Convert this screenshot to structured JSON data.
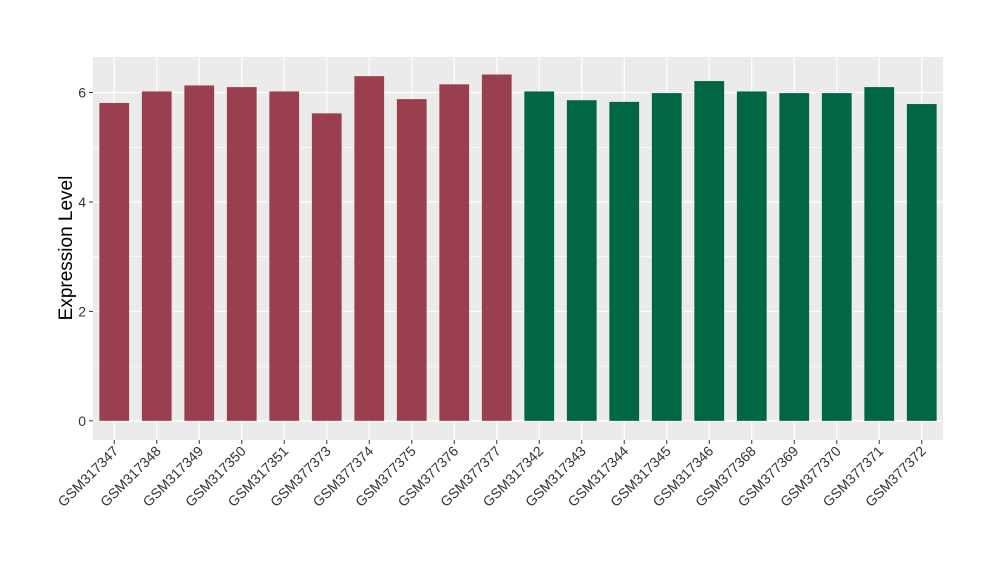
{
  "chart_data": {
    "type": "bar",
    "title": "",
    "xlabel": "",
    "ylabel": "Expression Level",
    "ylim": [
      -0.35,
      6.65
    ],
    "yticks": [
      0,
      2,
      4,
      6
    ],
    "ytick_labels": [
      "0",
      "2",
      "4",
      "6"
    ],
    "grid": true,
    "legend": "none",
    "categories": [
      "GSM317347",
      "GSM317348",
      "GSM317349",
      "GSM317350",
      "GSM317351",
      "GSM377373",
      "GSM377374",
      "GSM377375",
      "GSM377376",
      "GSM377377",
      "GSM317342",
      "GSM317343",
      "GSM317344",
      "GSM317345",
      "GSM317346",
      "GSM377368",
      "GSM377369",
      "GSM377370",
      "GSM377371",
      "GSM377372"
    ],
    "values": [
      5.81,
      6.02,
      6.13,
      6.1,
      6.02,
      5.62,
      6.3,
      5.88,
      6.15,
      6.33,
      6.02,
      5.86,
      5.83,
      5.99,
      6.21,
      6.02,
      5.99,
      5.99,
      6.1,
      5.79
    ],
    "bar_colors": [
      "#9A3F4F",
      "#9A3F4F",
      "#9A3F4F",
      "#9A3F4F",
      "#9A3F4F",
      "#9A3F4F",
      "#9A3F4F",
      "#9A3F4F",
      "#9A3F4F",
      "#9A3F4F",
      "#006644",
      "#006644",
      "#006644",
      "#006644",
      "#006644",
      "#006644",
      "#006644",
      "#006644",
      "#006644",
      "#006644"
    ],
    "panel_background": "#EBEBEB",
    "gridline_color": "#FFFFFF"
  }
}
